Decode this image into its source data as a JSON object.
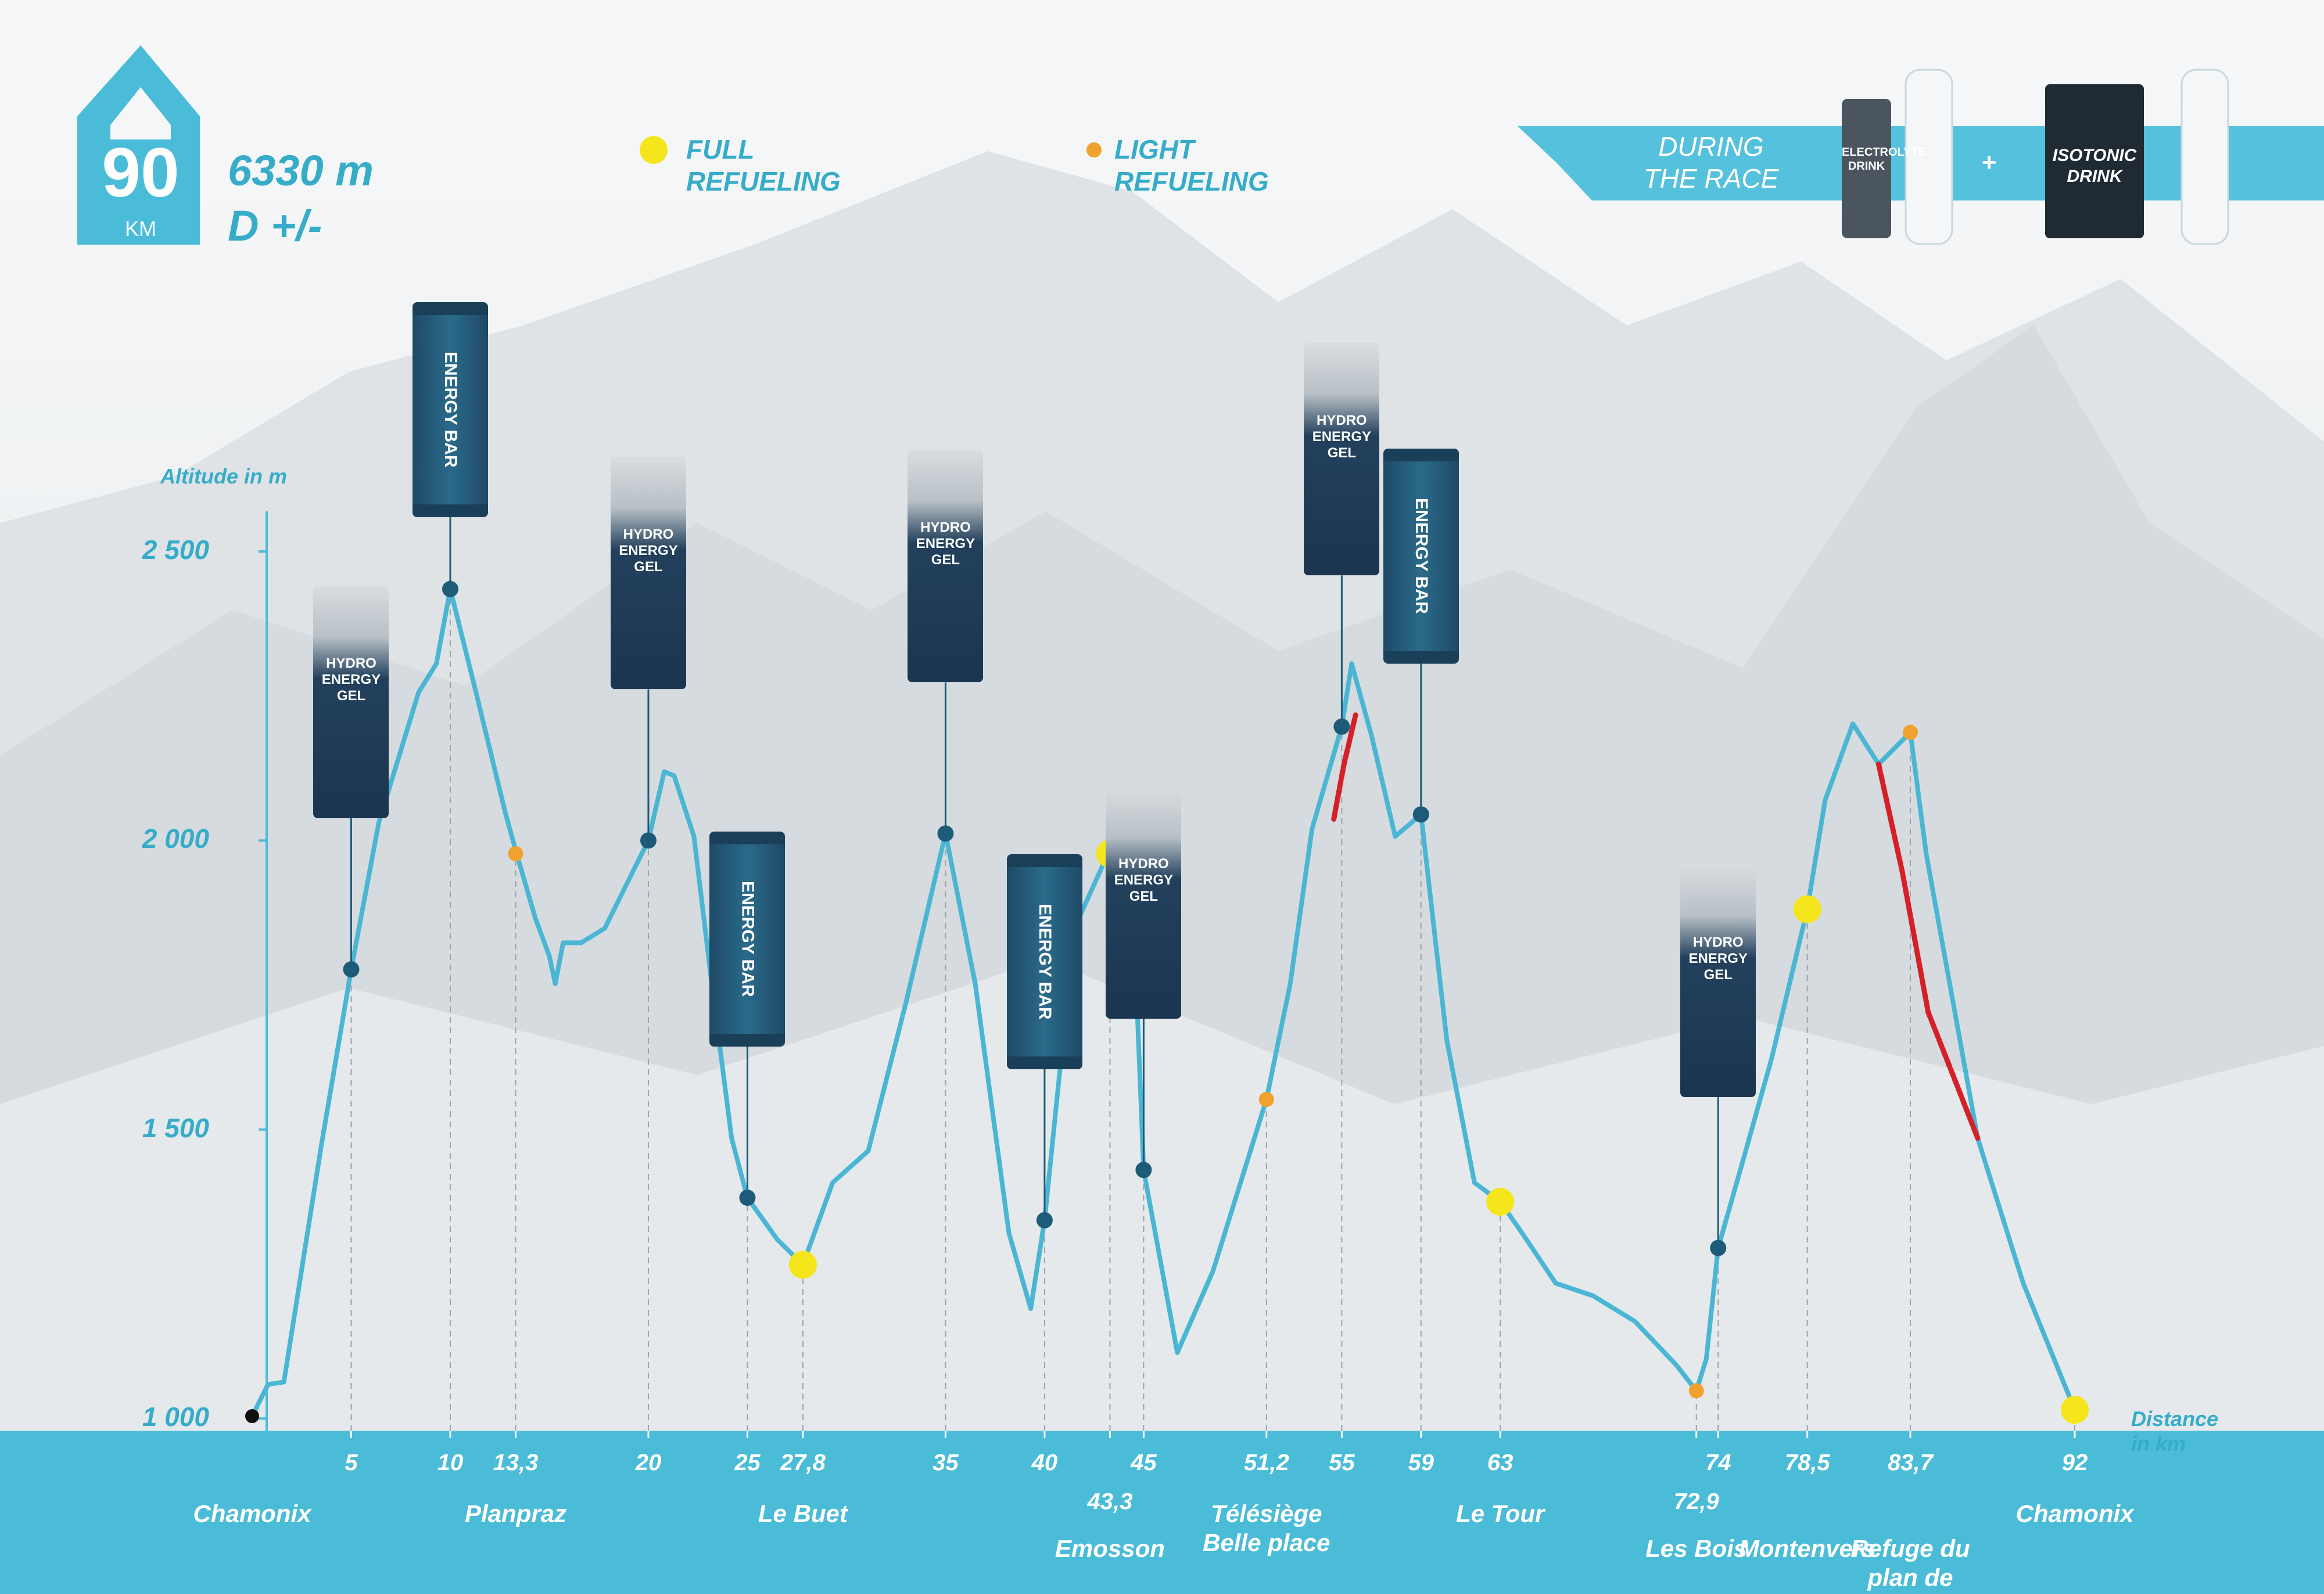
{
  "header": {
    "distance": "90",
    "distance_unit": "KM",
    "elevation": "6330 m",
    "elevation_label": "D +/-"
  },
  "during_race": {
    "title": "DURING THE RACE",
    "plus": "+",
    "products": [
      "ELECTROLYTE DRINK",
      "ISOTONIC DRINK"
    ]
  },
  "chart_data": {
    "type": "line",
    "y_label": "Altitude in m",
    "x_label": "Distance in km",
    "color": "#4ab6d4",
    "x": [
      0,
      0.8,
      1.6,
      3.5,
      5,
      6.4,
      8.4,
      9.3,
      10,
      11.3,
      12.8,
      13.35,
      14.3,
      15.0,
      15.3,
      15.7,
      16.6,
      17.8,
      19.2,
      20,
      20.8,
      21.3,
      22.3,
      23.2,
      24.2,
      25,
      26.5,
      27.8,
      29.3,
      31.1,
      33.0,
      35,
      36.5,
      38.2,
      39.3,
      40,
      41.5,
      43.2,
      43.8,
      44.4,
      45,
      46.7,
      48.5,
      51.2,
      52.4,
      53.5,
      55,
      55.5,
      56.5,
      57.7,
      59,
      60.3,
      61.7,
      63,
      64.1,
      65.8,
      67.7,
      69.8,
      71.9,
      72.9,
      73.4,
      74,
      75.3,
      76.7,
      78.5,
      79.4,
      80.8,
      82.1,
      83.7,
      84.5,
      87.1,
      89.4,
      92
    ],
    "values": [
      1004,
      1059,
      1063,
      1474,
      1777,
      2032,
      2256,
      2306,
      2435,
      2256,
      2045,
      1977,
      1865,
      1800,
      1752,
      1823,
      1823,
      1848,
      1945,
      2000,
      2119,
      2112,
      2007,
      1752,
      1485,
      1382,
      1310,
      1266,
      1408,
      1463,
      1719,
      2012,
      1752,
      1321,
      1190,
      1343,
      1848,
      1977,
      2007,
      1945,
      1430,
      1114,
      1255,
      1552,
      1752,
      2020,
      2197,
      2306,
      2182,
      2007,
      2045,
      1655,
      1408,
      1375,
      1321,
      1234,
      1212,
      1168,
      1092,
      1048,
      1103,
      1295,
      1452,
      1623,
      1881,
      2070,
      2202,
      2132,
      2187,
      1977,
      1485,
      1234,
      1015
    ],
    "markers": [
      {
        "name": "FULL REFUELING",
        "color": "#f4e61a",
        "x": [
          27.8,
          43.3,
          63,
          78.5,
          92
        ],
        "values": [
          1266,
          1977,
          1375,
          1881,
          1015
        ]
      },
      {
        "name": "LIGHT REFUELING",
        "color": "#f0a12e",
        "x": [
          13.3,
          51.2,
          72.9,
          83.7
        ],
        "values": [
          1977,
          1552,
          1048,
          2187
        ]
      }
    ],
    "product_stops": {
      "color": "#1d5b78",
      "x": [
        5,
        10,
        20,
        25,
        35,
        40,
        45,
        55,
        59,
        74
      ],
      "values": [
        1777,
        2435,
        2000,
        1382,
        2012,
        1343,
        1430,
        2197,
        2045,
        1295
      ],
      "products": [
        "HYDRO ENERGY GEL",
        "ENERGY BAR",
        "HYDRO ENERGY GEL",
        "ENERGY BAR",
        "HYDRO ENERGY GEL",
        "ENERGY BAR",
        "HYDRO ENERGY GEL",
        "HYDRO ENERGY GEL",
        "ENERGY BAR",
        "HYDRO ENERGY GEL"
      ]
    },
    "highlights": {
      "color": "#d62027",
      "segments": [
        {
          "x": [
            54.6,
            55.1,
            55.7
          ],
          "values": [
            2037,
            2130,
            2217
          ]
        },
        {
          "x": [
            82.1,
            83.3,
            84.6,
            85.9,
            87.1
          ],
          "values": [
            2132,
            1945,
            1703,
            1590,
            1485
          ]
        }
      ]
    },
    "places": [
      {
        "x": 0,
        "name": "Chamonix"
      },
      {
        "x": 13.3,
        "name": "Planpraz"
      },
      {
        "x": 27.8,
        "name": "Le Buet"
      },
      {
        "x": 43.3,
        "name": "Emosson"
      },
      {
        "x": 51.2,
        "name": "Télésiège Belle place"
      },
      {
        "x": 63,
        "name": "Le Tour"
      },
      {
        "x": 72.9,
        "name": "Les Bois"
      },
      {
        "x": 78.5,
        "name": "Montenvers"
      },
      {
        "x": 83.7,
        "name": "Refuge du plan de l’aiguille"
      },
      {
        "x": 92,
        "name": "Chamonix"
      }
    ],
    "xlim": [
      0,
      92
    ],
    "ylim": [
      1000,
      2500
    ],
    "xticks": [
      5,
      10,
      {
        "value": 13.3,
        "label": "13,3"
      },
      20,
      25,
      {
        "value": 27.8,
        "label": "27,8"
      },
      35,
      40,
      {
        "value": 43.3,
        "label": "43,3"
      },
      45,
      {
        "value": 51.2,
        "label": "51,2"
      },
      55,
      59,
      63,
      {
        "value": 72.9,
        "label": "72,9"
      },
      74,
      {
        "value": 78.5,
        "label": "78,5"
      },
      {
        "value": 83.7,
        "label": "83,7"
      },
      92
    ],
    "yticks": [
      {
        "value": 1000,
        "label": "1 000"
      },
      {
        "value": 1500,
        "label": "1 500"
      },
      {
        "value": 2000,
        "label": "2 000"
      },
      {
        "value": 2500,
        "label": "2 500"
      }
    ]
  }
}
